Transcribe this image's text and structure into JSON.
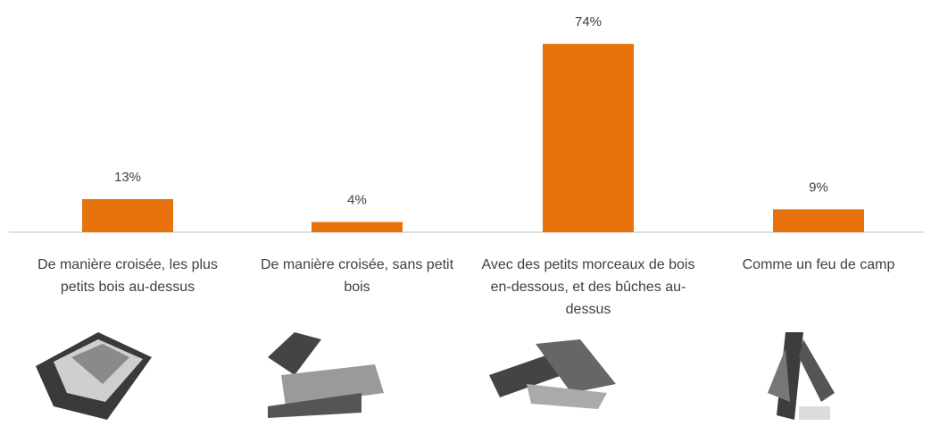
{
  "chart_data": {
    "type": "bar",
    "categories": [
      "De manière croisée, les plus petits bois au-dessus",
      "De manière croisée, sans petit bois",
      "Avec des petits morceaux de bois en-dessous, et des bûches au-dessus",
      "Comme un feu de camp"
    ],
    "values": [
      13,
      4,
      74,
      9
    ],
    "value_labels": [
      "13%",
      "4%",
      "74%",
      "9%"
    ],
    "color": "#e8730c"
  }
}
